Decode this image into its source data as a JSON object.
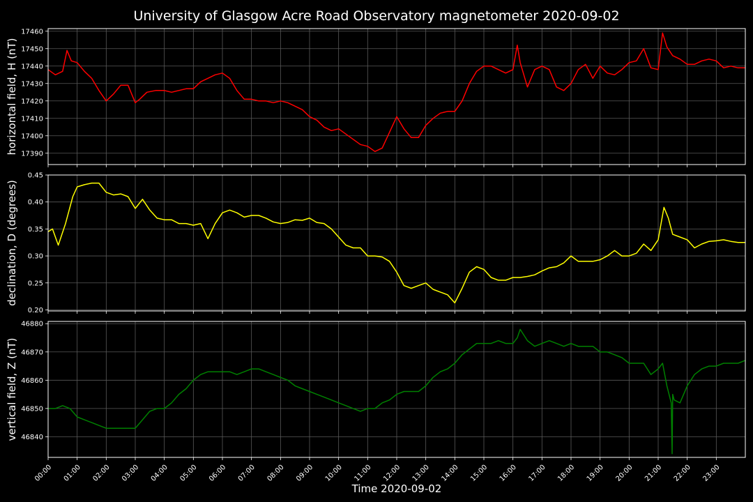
{
  "figure": {
    "title": "University of Glasgow Acre Road Observatory magnetometer 2020-09-02",
    "xlabel": "Time 2020-09-02",
    "background": "#000000",
    "grid_color": "#5a5a5a",
    "text_color": "#ffffff"
  },
  "chart_data": [
    {
      "type": "line",
      "title": "",
      "xlabel": "Time 2020-09-02",
      "ylabel": "horizontal field, H (nT)",
      "xlim": [
        0,
        24
      ],
      "ylim": [
        17383.5,
        17461.5
      ],
      "grid": true,
      "x_tick_labels": [
        "00:00",
        "01:00",
        "02:00",
        "03:00",
        "04:00",
        "05:00",
        "06:00",
        "07:00",
        "08:00",
        "09:00",
        "10:00",
        "11:00",
        "12:00",
        "13:00",
        "14:00",
        "15:00",
        "16:00",
        "17:00",
        "18:00",
        "19:00",
        "20:00",
        "21:00",
        "22:00",
        "23:00"
      ],
      "y_ticks": [
        17390,
        17400,
        17410,
        17420,
        17430,
        17440,
        17450,
        17460
      ],
      "series": [
        {
          "color": "#ff0000",
          "x": [
            0,
            0.25,
            0.5,
            0.65,
            0.8,
            1.0,
            1.25,
            1.5,
            1.75,
            2.0,
            2.25,
            2.5,
            2.75,
            3.0,
            3.15,
            3.4,
            3.7,
            4.0,
            4.25,
            4.5,
            4.75,
            5.0,
            5.25,
            5.5,
            5.75,
            6.0,
            6.25,
            6.5,
            6.75,
            7.0,
            7.25,
            7.5,
            7.75,
            8.0,
            8.25,
            8.5,
            8.75,
            9.0,
            9.25,
            9.5,
            9.75,
            10.0,
            10.25,
            10.5,
            10.75,
            11.0,
            11.25,
            11.5,
            11.75,
            12.0,
            12.25,
            12.5,
            12.75,
            13.0,
            13.25,
            13.5,
            13.75,
            14.0,
            14.25,
            14.5,
            14.75,
            15.0,
            15.25,
            15.5,
            15.75,
            16.0,
            16.15,
            16.25,
            16.5,
            16.75,
            17.0,
            17.25,
            17.5,
            17.75,
            18.0,
            18.25,
            18.5,
            18.75,
            19.0,
            19.25,
            19.5,
            19.75,
            20.0,
            20.25,
            20.5,
            20.75,
            21.0,
            21.15,
            21.3,
            21.5,
            21.75,
            22.0,
            22.25,
            22.5,
            22.75,
            23.0,
            23.25,
            23.5,
            23.75,
            24.0
          ],
          "y": [
            17438,
            17435,
            17437,
            17449,
            17443,
            17442,
            17437,
            17433,
            17426,
            17420,
            17424,
            17429,
            17429,
            17419,
            17421,
            17425,
            17426,
            17426,
            17425,
            17426,
            17427,
            17427,
            17431,
            17433,
            17435,
            17436,
            17433,
            17426,
            17421,
            17421,
            17420,
            17420,
            17419,
            17420,
            17419,
            17417,
            17415,
            17411,
            17409,
            17405,
            17403,
            17404,
            17401,
            17398,
            17395,
            17394,
            17391,
            17393,
            17402,
            17411,
            17404,
            17399,
            17399,
            17406,
            17410,
            17413,
            17414,
            17414,
            17420,
            17430,
            17437,
            17440,
            17440,
            17438,
            17436,
            17438,
            17452,
            17442,
            17428,
            17438,
            17440,
            17438,
            17428,
            17426,
            17430,
            17438,
            17441,
            17433,
            17440,
            17436,
            17435,
            17438,
            17442,
            17443,
            17450,
            17439,
            17438,
            17459,
            17451,
            17446,
            17444,
            17441,
            17441,
            17443,
            17444,
            17443,
            17439,
            17440,
            17439,
            17439
          ]
        }
      ]
    },
    {
      "type": "line",
      "title": "",
      "xlabel": "Time 2020-09-02",
      "ylabel": "declination, D (degrees)",
      "xlim": [
        0,
        24
      ],
      "ylim": [
        0.198,
        0.45
      ],
      "grid": true,
      "x_tick_labels": [
        "00:00",
        "01:00",
        "02:00",
        "03:00",
        "04:00",
        "05:00",
        "06:00",
        "07:00",
        "08:00",
        "09:00",
        "10:00",
        "11:00",
        "12:00",
        "13:00",
        "14:00",
        "15:00",
        "16:00",
        "17:00",
        "18:00",
        "19:00",
        "20:00",
        "21:00",
        "22:00",
        "23:00"
      ],
      "y_ticks": [
        0.2,
        0.25,
        0.3,
        0.35,
        0.4,
        0.45
      ],
      "y_tick_labels": [
        "0.20",
        "0.25",
        "0.30",
        "0.35",
        "0.40",
        "0.45"
      ],
      "series": [
        {
          "color": "#ffff00",
          "x": [
            0,
            0.15,
            0.35,
            0.6,
            0.85,
            1.0,
            1.25,
            1.5,
            1.75,
            2.0,
            2.25,
            2.5,
            2.75,
            3.0,
            3.25,
            3.5,
            3.75,
            4.0,
            4.25,
            4.5,
            4.75,
            5.0,
            5.25,
            5.5,
            5.75,
            6.0,
            6.25,
            6.5,
            6.75,
            7.0,
            7.25,
            7.5,
            7.75,
            8.0,
            8.25,
            8.5,
            8.75,
            9.0,
            9.25,
            9.5,
            9.75,
            10.0,
            10.25,
            10.5,
            10.75,
            11.0,
            11.25,
            11.5,
            11.75,
            12.0,
            12.25,
            12.5,
            12.75,
            13.0,
            13.25,
            13.5,
            13.75,
            14.0,
            14.25,
            14.5,
            14.75,
            15.0,
            15.25,
            15.5,
            15.75,
            16.0,
            16.25,
            16.5,
            16.75,
            17.0,
            17.25,
            17.5,
            17.75,
            18.0,
            18.25,
            18.5,
            18.75,
            19.0,
            19.25,
            19.5,
            19.75,
            20.0,
            20.25,
            20.5,
            20.75,
            21.0,
            21.2,
            21.35,
            21.5,
            21.75,
            22.0,
            22.25,
            22.5,
            22.75,
            23.0,
            23.25,
            23.5,
            23.75,
            24.0
          ],
          "y": [
            0.345,
            0.35,
            0.32,
            0.36,
            0.41,
            0.428,
            0.432,
            0.435,
            0.435,
            0.418,
            0.413,
            0.415,
            0.41,
            0.388,
            0.405,
            0.385,
            0.37,
            0.367,
            0.367,
            0.36,
            0.36,
            0.357,
            0.36,
            0.332,
            0.36,
            0.38,
            0.385,
            0.38,
            0.372,
            0.375,
            0.375,
            0.37,
            0.363,
            0.36,
            0.362,
            0.367,
            0.366,
            0.37,
            0.362,
            0.36,
            0.35,
            0.335,
            0.32,
            0.315,
            0.315,
            0.3,
            0.3,
            0.298,
            0.29,
            0.27,
            0.245,
            0.24,
            0.245,
            0.25,
            0.238,
            0.233,
            0.228,
            0.213,
            0.24,
            0.27,
            0.28,
            0.275,
            0.26,
            0.255,
            0.255,
            0.26,
            0.26,
            0.262,
            0.265,
            0.272,
            0.278,
            0.28,
            0.287,
            0.3,
            0.29,
            0.29,
            0.29,
            0.293,
            0.3,
            0.31,
            0.3,
            0.3,
            0.305,
            0.322,
            0.31,
            0.33,
            0.39,
            0.37,
            0.34,
            0.335,
            0.33,
            0.315,
            0.322,
            0.327,
            0.328,
            0.33,
            0.327,
            0.325,
            0.325
          ]
        }
      ]
    },
    {
      "type": "line",
      "title": "",
      "xlabel": "Time 2020-09-02",
      "ylabel": "vertical field, Z (nT)",
      "xlim": [
        0,
        24
      ],
      "ylim": [
        46832.7,
        46880.8
      ],
      "grid": true,
      "x_tick_labels": [
        "00:00",
        "01:00",
        "02:00",
        "03:00",
        "04:00",
        "05:00",
        "06:00",
        "07:00",
        "08:00",
        "09:00",
        "10:00",
        "11:00",
        "12:00",
        "13:00",
        "14:00",
        "15:00",
        "16:00",
        "17:00",
        "18:00",
        "19:00",
        "20:00",
        "21:00",
        "22:00",
        "23:00"
      ],
      "y_ticks": [
        46840,
        46850,
        46860,
        46870,
        46880
      ],
      "series": [
        {
          "color": "#008000",
          "x": [
            0,
            0.25,
            0.5,
            0.75,
            1.0,
            1.25,
            1.5,
            1.75,
            2.0,
            2.25,
            2.5,
            2.75,
            3.0,
            3.25,
            3.5,
            3.75,
            4.0,
            4.25,
            4.5,
            4.75,
            5.0,
            5.25,
            5.5,
            5.75,
            6.0,
            6.25,
            6.5,
            6.75,
            7.0,
            7.25,
            7.5,
            7.75,
            8.0,
            8.25,
            8.5,
            8.75,
            9.0,
            9.25,
            9.5,
            9.75,
            10.0,
            10.25,
            10.5,
            10.75,
            11.0,
            11.25,
            11.5,
            11.75,
            12.0,
            12.25,
            12.5,
            12.75,
            13.0,
            13.25,
            13.5,
            13.75,
            14.0,
            14.25,
            14.5,
            14.75,
            15.0,
            15.25,
            15.5,
            15.75,
            16.0,
            16.15,
            16.25,
            16.5,
            16.75,
            17.0,
            17.25,
            17.5,
            17.75,
            18.0,
            18.25,
            18.5,
            18.75,
            19.0,
            19.25,
            19.5,
            19.75,
            20.0,
            20.25,
            20.5,
            20.75,
            21.0,
            21.15,
            21.3,
            21.45,
            21.48,
            21.5,
            21.55,
            21.75,
            22.0,
            22.25,
            22.5,
            22.75,
            23.0,
            23.25,
            23.5,
            23.75,
            24.0
          ],
          "y": [
            46850,
            46850,
            46851,
            46850,
            46847,
            46846,
            46845,
            46844,
            46843,
            46843,
            46843,
            46843,
            46843,
            46846,
            46849,
            46850,
            46850,
            46852,
            46855,
            46857,
            46860,
            46862,
            46863,
            46863,
            46863,
            46863,
            46862,
            46863,
            46864,
            46864,
            46863,
            46862,
            46861,
            46860,
            46858,
            46857,
            46856,
            46855,
            46854,
            46853,
            46852,
            46851,
            46850,
            46849,
            46850,
            46850,
            46852,
            46853,
            46855,
            46856,
            46856,
            46856,
            46858,
            46861,
            46863,
            46864,
            46866,
            46869,
            46871,
            46873,
            46873,
            46873,
            46874,
            46873,
            46873,
            46875,
            46878,
            46874,
            46872,
            46873,
            46874,
            46873,
            46872,
            46873,
            46872,
            46872,
            46872,
            46870,
            46870,
            46869,
            46868,
            46866,
            46866,
            46866,
            46862,
            46864,
            46866,
            46858,
            46852,
            46834,
            46855,
            46853,
            46852,
            46858,
            46862,
            46864,
            46865,
            46865,
            46866,
            46866,
            46866,
            46867
          ]
        }
      ]
    }
  ]
}
